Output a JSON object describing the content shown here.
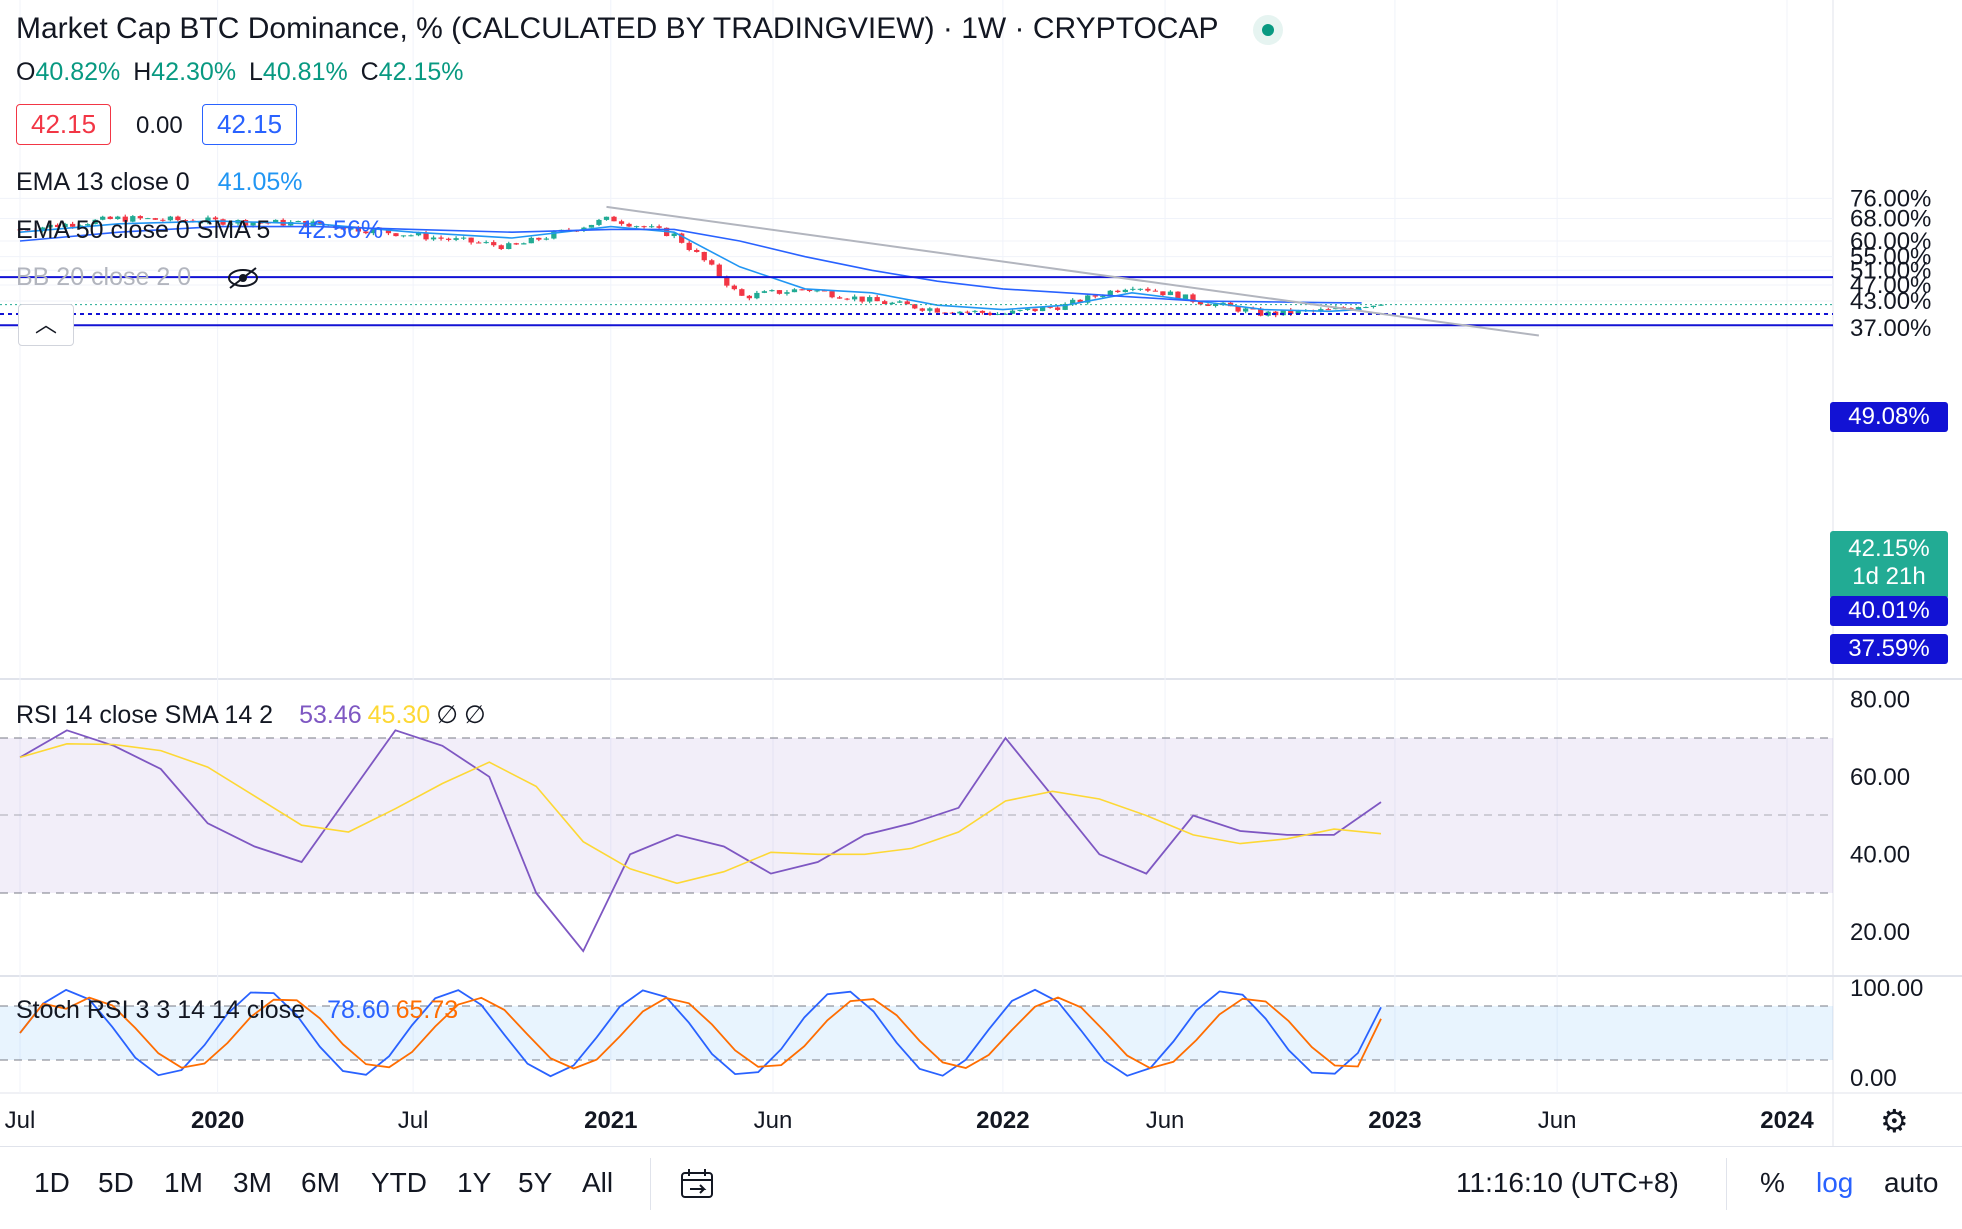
{
  "header": {
    "title": "Market Cap BTC Dominance, % (CALCULATED BY TRADINGVIEW) · 1W · CRYPTOCAP",
    "ohlc": {
      "o_label": "O",
      "o": "40.82%",
      "h_label": "H",
      "h": "42.30%",
      "l_label": "L",
      "l": "40.81%",
      "c_label": "C",
      "c": "42.15%"
    },
    "sell_price": "42.15",
    "spread": "0.00",
    "buy_price": "42.15"
  },
  "indicators": {
    "ema13": {
      "label": "EMA 13 close 0",
      "value": "41.05%"
    },
    "ema50": {
      "label": "EMA 50 close 0 SMA 5",
      "value": "42.56%"
    },
    "bb": {
      "label": "BB 20 close 2 0"
    },
    "rsi": {
      "label": "RSI 14 close SMA 14 2",
      "value": "53.46",
      "sma": "45.30",
      "na1": "∅",
      "na2": "∅"
    },
    "stoch": {
      "label": "Stoch RSI 3 3 14 14 close",
      "k": "78.60",
      "d": "65.73"
    }
  },
  "price_axis": {
    "ticks": [
      "76.00%",
      "68.00%",
      "60.00%",
      "55.00%",
      "51.00%",
      "47.00%",
      "43.00%",
      "37.00%"
    ],
    "tags": [
      {
        "text": "49.08%",
        "color": "#1212d4"
      },
      {
        "text": "42.15%",
        "sub": "1d 21h",
        "color": "#22ab94"
      },
      {
        "text": "40.01%",
        "color": "#1212d4"
      },
      {
        "text": "37.59%",
        "color": "#1212d4"
      }
    ]
  },
  "rsi_axis": {
    "ticks": [
      "80.00",
      "60.00",
      "40.00",
      "20.00"
    ]
  },
  "stoch_axis": {
    "ticks": [
      "100.00",
      "0.00"
    ]
  },
  "time_axis": {
    "labels": [
      "Jul",
      "2020",
      "Jul",
      "2021",
      "Jun",
      "2022",
      "Jun",
      "2023",
      "Jun",
      "2024"
    ]
  },
  "bottom_bar": {
    "ranges": [
      "1D",
      "5D",
      "1M",
      "3M",
      "6M",
      "YTD",
      "1Y",
      "5Y",
      "All"
    ],
    "clock": "11:16:10 (UTC+8)",
    "percent": "%",
    "log": "log",
    "auto": "auto"
  },
  "colors": {
    "up": "#22ab94",
    "down": "#f23645",
    "ema13": "#2196f3",
    "ema50": "#2962ff",
    "rsi": "#7e57c2",
    "rsi_sma": "#fdd835",
    "stoch_k": "#2962ff",
    "stoch_d": "#ff6d00",
    "hline": "#1212d4"
  },
  "chart_data": {
    "type": "line",
    "scale": "log",
    "x": [
      "2019-07",
      "2019-10",
      "2020-01",
      "2020-04",
      "2020-07",
      "2020-10",
      "2021-01",
      "2021-03",
      "2021-05",
      "2021-07",
      "2021-09",
      "2021-11",
      "2022-01",
      "2022-03",
      "2022-05",
      "2022-07",
      "2022-09",
      "2022-11",
      "2022-12"
    ],
    "series": [
      {
        "name": "BTC Dominance",
        "values": [
          64,
          68,
          67,
          66,
          62,
          58,
          68,
          62,
          44,
          46,
          43,
          41,
          40,
          42,
          47,
          43,
          40,
          40.8,
          42.15
        ]
      },
      {
        "name": "EMA 13",
        "values": [
          63,
          66,
          67,
          66,
          63,
          61,
          65,
          63,
          52,
          46,
          45,
          42,
          41,
          42,
          45,
          43,
          41,
          40.6,
          41.05
        ]
      },
      {
        "name": "EMA 50",
        "values": [
          60,
          63,
          65,
          65,
          64,
          63,
          64,
          64,
          60,
          55,
          51,
          48,
          46,
          45,
          44,
          43,
          42.8,
          42.6,
          42.56
        ]
      }
    ],
    "horizontal_lines": [
      49.08,
      40.01,
      37.59
    ],
    "trendline": {
      "from": [
        "2020-12-28",
        72.5
      ],
      "to": [
        "2023-05-15",
        35.5
      ]
    },
    "last_close": 42.15,
    "rsi": {
      "label": "RSI 14 close SMA 14 2",
      "last": 53.46,
      "sma_last": 45.3,
      "upper": 70,
      "middle": 50,
      "lower": 30,
      "values": [
        65,
        72,
        68,
        62,
        48,
        42,
        38,
        55,
        72,
        68,
        60,
        30,
        15,
        40,
        45,
        42,
        35,
        38,
        45,
        48,
        52,
        70,
        55,
        40,
        35,
        50,
        46,
        45,
        45,
        53.46
      ]
    },
    "stoch_rsi": {
      "label": "Stoch RSI 3 3 14 14 close",
      "k_last": 78.6,
      "d_last": 65.73,
      "upper": 80,
      "lower": 20
    },
    "y_ticks_price": [
      "76.00%",
      "68.00%",
      "60.00%",
      "55.00%",
      "51.00%",
      "47.00%",
      "43.00%",
      "37.00%"
    ],
    "x_ticks": [
      "Jul",
      "2020",
      "Jul",
      "2021",
      "Jun",
      "2022",
      "Jun",
      "2023",
      "Jun",
      "2024"
    ]
  }
}
